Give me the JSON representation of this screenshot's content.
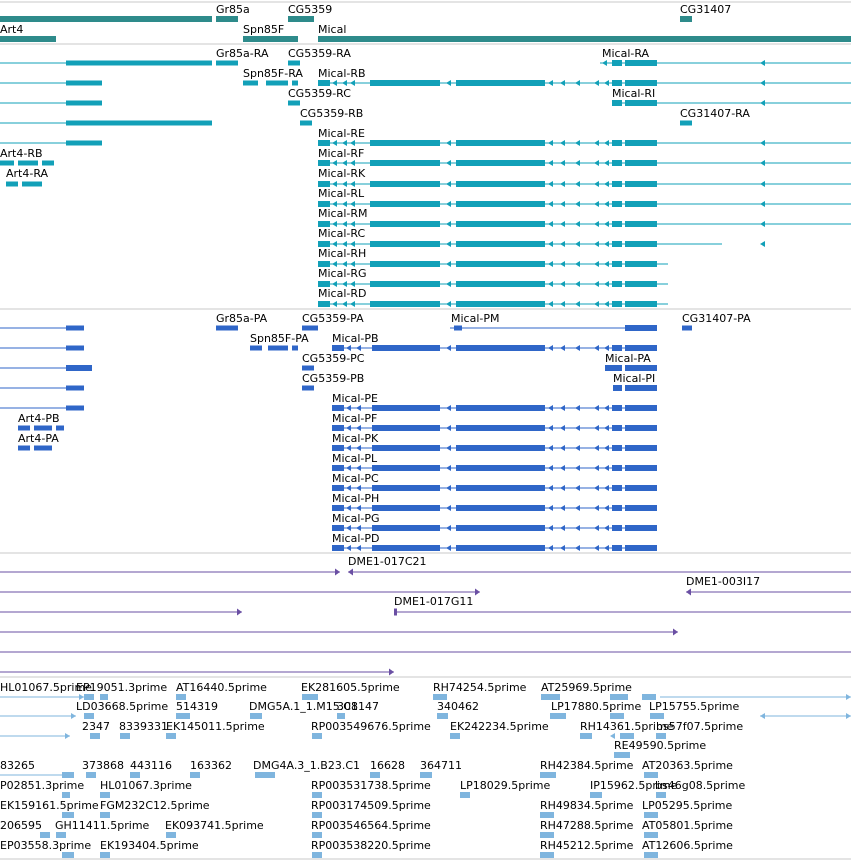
{
  "colors": {
    "gene": "#2e8b8b",
    "transcript": "#12a0b8",
    "protein": "#2f66c8",
    "clone": "#6a4fa3",
    "est": "#7fb5de",
    "separator": "#c8c8c8",
    "text": "#000000"
  },
  "tracks": [
    {
      "id": "genes",
      "items": [
        {
          "label": "Gr85a"
        },
        {
          "label": "CG5359"
        },
        {
          "label": "CG31407"
        },
        {
          "label": "Art4"
        },
        {
          "label": "Spn85F"
        },
        {
          "label": "Mical"
        }
      ]
    },
    {
      "id": "transcripts",
      "items": [
        {
          "label": "Gr85a-RA"
        },
        {
          "label": "CG5359-RA"
        },
        {
          "label": "Mical-RA"
        },
        {
          "label": "Spn85F-RA"
        },
        {
          "label": "Mical-RB"
        },
        {
          "label": "CG5359-RC"
        },
        {
          "label": "Mical-RI"
        },
        {
          "label": "CG5359-RB"
        },
        {
          "label": "CG31407-RA"
        },
        {
          "label": "Mical-RE"
        },
        {
          "label": "Art4-RB"
        },
        {
          "label": "Mical-RF"
        },
        {
          "label": "Art4-RA"
        },
        {
          "label": "Mical-RK"
        },
        {
          "label": "Mical-RL"
        },
        {
          "label": "Mical-RM"
        },
        {
          "label": "Mical-RC"
        },
        {
          "label": "Mical-RH"
        },
        {
          "label": "Mical-RG"
        },
        {
          "label": "Mical-RD"
        }
      ]
    },
    {
      "id": "proteins",
      "items": [
        {
          "label": "Gr85a-PA"
        },
        {
          "label": "CG5359-PA"
        },
        {
          "label": "Mical-PM"
        },
        {
          "label": "CG31407-PA"
        },
        {
          "label": "Spn85F-PA"
        },
        {
          "label": "Mical-PB"
        },
        {
          "label": "CG5359-PC"
        },
        {
          "label": "Mical-PA"
        },
        {
          "label": "CG5359-PB"
        },
        {
          "label": "Mical-PI"
        },
        {
          "label": "Mical-PE"
        },
        {
          "label": "Art4-PB"
        },
        {
          "label": "Mical-PF"
        },
        {
          "label": "Art4-PA"
        },
        {
          "label": "Mical-PK"
        },
        {
          "label": "Mical-PL"
        },
        {
          "label": "Mical-PC"
        },
        {
          "label": "Mical-PH"
        },
        {
          "label": "Mical-PG"
        },
        {
          "label": "Mical-PD"
        }
      ]
    },
    {
      "id": "clones",
      "items": [
        {
          "label": "DME1-017C21"
        },
        {
          "label": "DME1-003I17"
        },
        {
          "label": "DME1-017G11"
        }
      ]
    },
    {
      "id": "ests",
      "items": [
        {
          "label": "HL01067.5prime"
        },
        {
          "label": "EP19051.3prime"
        },
        {
          "label": "AT16440.5prime"
        },
        {
          "label": "EK281605.5prime"
        },
        {
          "label": "RH74254.5prime"
        },
        {
          "label": "AT25969.5prime"
        },
        {
          "label": "LD03668.5prime"
        },
        {
          "label": "514319"
        },
        {
          "label": "DMG5A.1_1.M15.C1"
        },
        {
          "label": "308147"
        },
        {
          "label": "340462"
        },
        {
          "label": "LP17880.5prime"
        },
        {
          "label": "LP15755.5prime"
        },
        {
          "label": "2347"
        },
        {
          "label": "8339331"
        },
        {
          "label": "EK145011.5prime"
        },
        {
          "label": "RP003549676.5prime"
        },
        {
          "label": "EK242234.5prime"
        },
        {
          "label": "RH14361.5prime"
        },
        {
          "label": "bs57f07.5prime"
        },
        {
          "label": "RE49590.5prime"
        },
        {
          "label": "83265"
        },
        {
          "label": "373868"
        },
        {
          "label": "443116"
        },
        {
          "label": "163362"
        },
        {
          "label": "DMG4A.3_1.B23.C1"
        },
        {
          "label": "16628"
        },
        {
          "label": "364711"
        },
        {
          "label": "RH42384.5prime"
        },
        {
          "label": "AT20363.5prime"
        },
        {
          "label": "P02851.3prime"
        },
        {
          "label": "HL01067.3prime"
        },
        {
          "label": "RP003531738.5prime"
        },
        {
          "label": "LP18029.5prime"
        },
        {
          "label": "IP15962.5prime"
        },
        {
          "label": "bs46g08.5prime"
        },
        {
          "label": "EK159161.5prime"
        },
        {
          "label": "FGM232C12.5prime"
        },
        {
          "label": "RP003174509.5prime"
        },
        {
          "label": "RH49834.5prime"
        },
        {
          "label": "LP05295.5prime"
        },
        {
          "label": "206595"
        },
        {
          "label": "GH11411.5prime"
        },
        {
          "label": "EK093741.5prime"
        },
        {
          "label": "RP003546564.5prime"
        },
        {
          "label": "RH47288.5prime"
        },
        {
          "label": "AT05801.5prime"
        },
        {
          "label": "EP03558.3prime"
        },
        {
          "label": "EK193404.5prime"
        },
        {
          "label": "RP003538220.5prime"
        },
        {
          "label": "RH45212.5prime"
        },
        {
          "label": "AT12606.5prime"
        }
      ]
    }
  ]
}
